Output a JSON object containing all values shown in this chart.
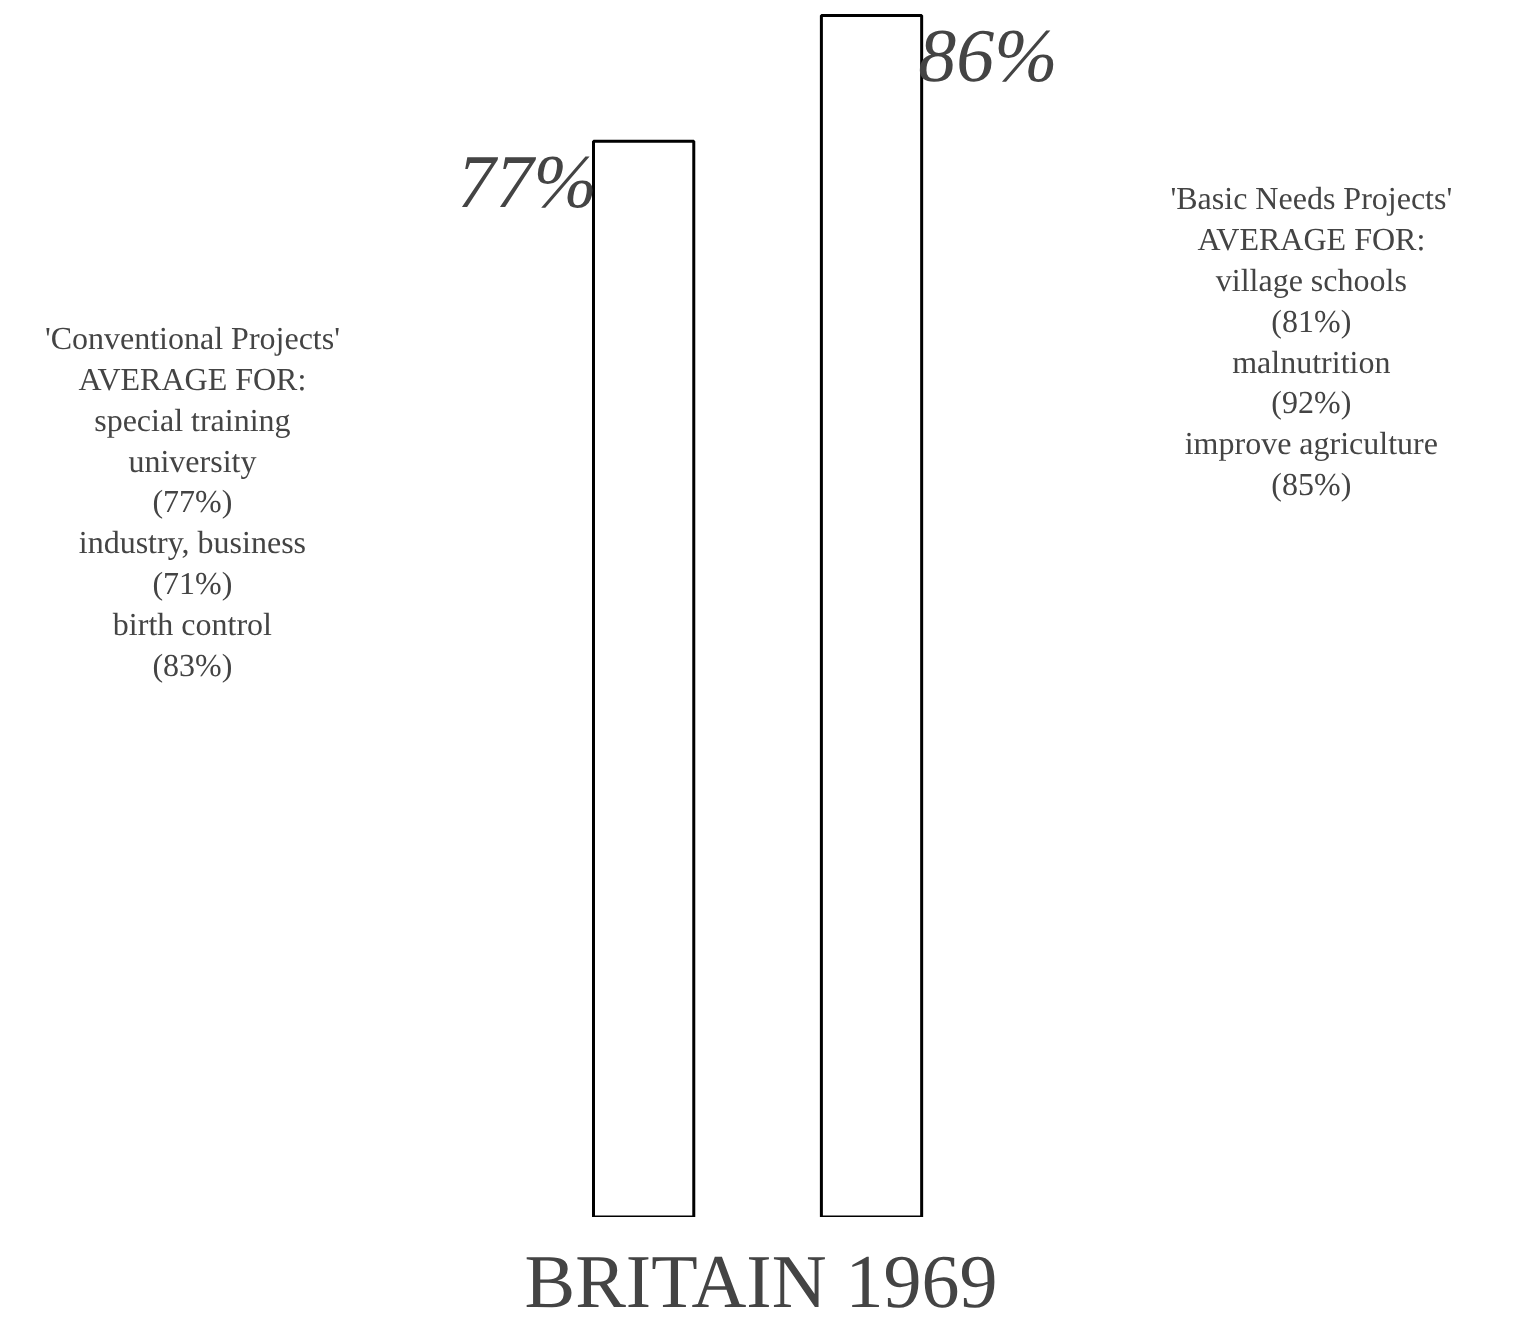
{
  "chart_data": {
    "type": "bar",
    "xlabel": "BRITAIN 1969",
    "categories": [
      null,
      null
    ],
    "values": [
      77,
      86
    ],
    "color": "#ffffff",
    "value_labels": [
      "77%",
      "86%"
    ],
    "annotations": [
      "'Conventional Projects'\nAVERAGE FOR:\nspecial training\nuniversity\n(77%)\nindustry, business\n(71%)\nbirth control\n(83%)",
      "'Basic Needs Projects'\nAVERAGE FOR:\nvillage schools\n(81%)\nmalnutrition\n(92%)\nimprove agriculture\n(85%)"
    ],
    "grid": false
  }
}
